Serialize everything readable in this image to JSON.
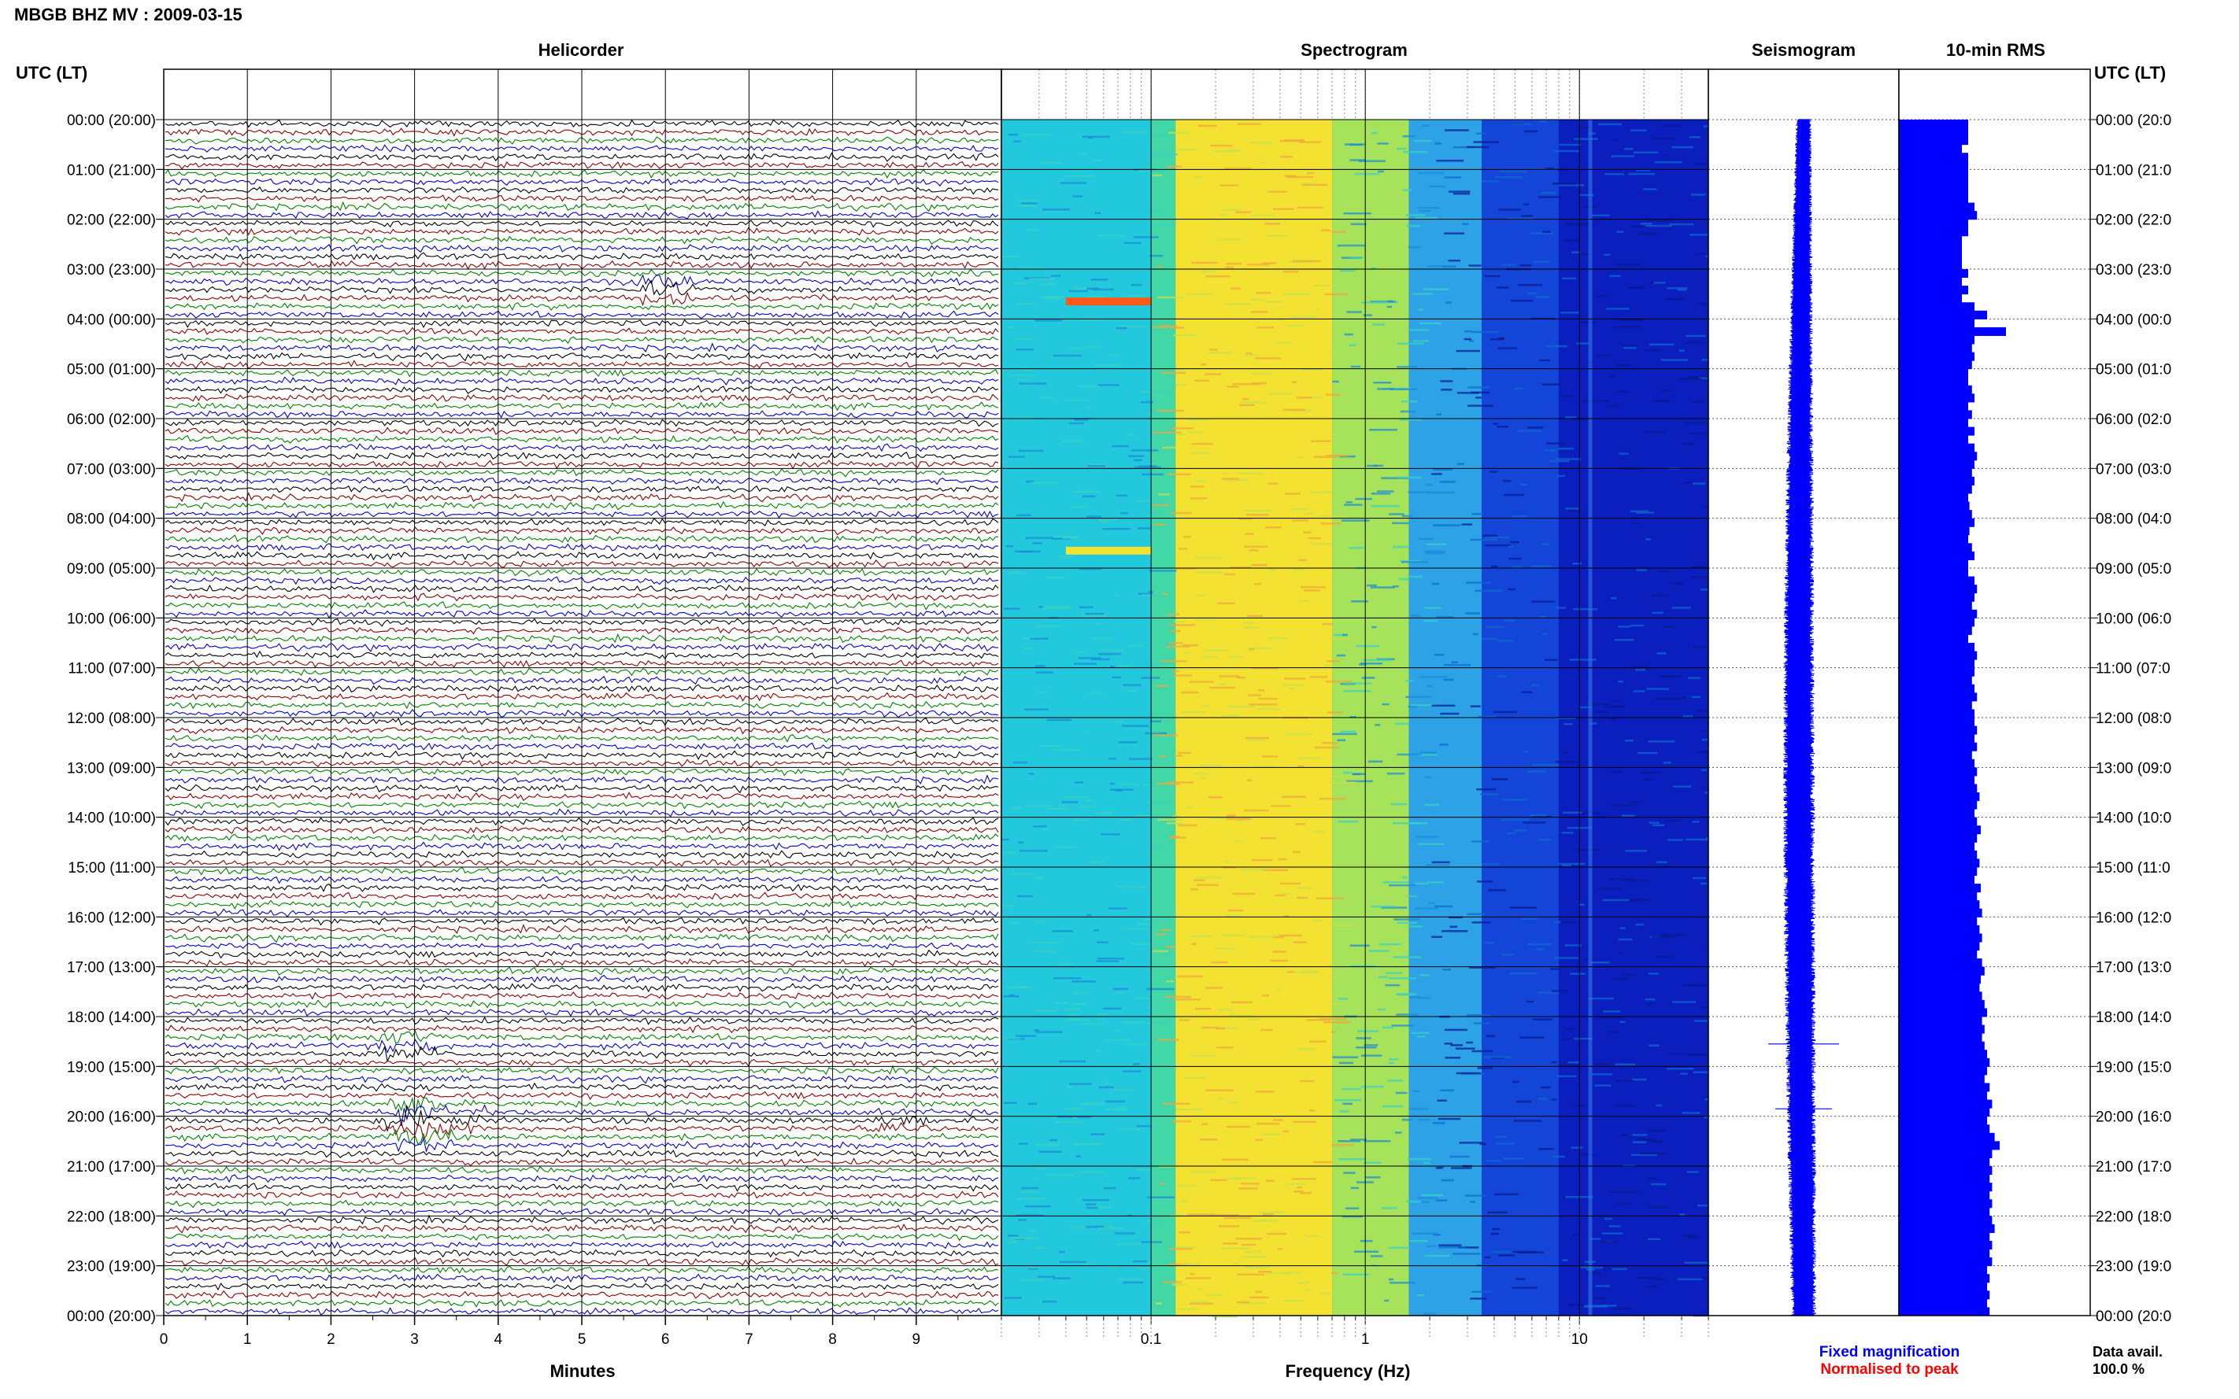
{
  "figure_title": "MBGB BHZ MV : 2009-03-15",
  "panels": {
    "helicorder": "Helicorder",
    "spectrogram": "Spectrogram",
    "seismogram": "Seismogram",
    "rms": "10-min RMS"
  },
  "left_axis_title": "UTC (LT)",
  "right_axis_title": "UTC (LT)",
  "time_labels_left": [
    "00:00 (20:00)",
    "01:00 (21:00)",
    "02:00 (22:00)",
    "03:00 (23:00)",
    "04:00 (00:00)",
    "05:00 (01:00)",
    "06:00 (02:00)",
    "07:00 (03:00)",
    "08:00 (04:00)",
    "09:00 (05:00)",
    "10:00 (06:00)",
    "11:00 (07:00)",
    "12:00 (08:00)",
    "13:00 (09:00)",
    "14:00 (10:00)",
    "15:00 (11:00)",
    "16:00 (12:00)",
    "17:00 (13:00)",
    "18:00 (14:00)",
    "19:00 (15:00)",
    "20:00 (16:00)",
    "21:00 (17:00)",
    "22:00 (18:00)",
    "23:00 (19:00)",
    "00:00 (20:00)"
  ],
  "time_labels_right": [
    "00:00 (20:0",
    "01:00 (21:0",
    "02:00 (22:0",
    "03:00 (23:0",
    "04:00 (00:0",
    "05:00 (01:0",
    "06:00 (02:0",
    "07:00 (03:0",
    "08:00 (04:0",
    "09:00 (05:0",
    "10:00 (06:0",
    "11:00 (07:0",
    "12:00 (08:0",
    "13:00 (09:0",
    "14:00 (10:0",
    "15:00 (11:0",
    "16:00 (12:0",
    "17:00 (13:0",
    "18:00 (14:0",
    "19:00 (15:0",
    "20:00 (16:0",
    "21:00 (17:0",
    "22:00 (18:0",
    "23:00 (19:0",
    "00:00 (20:0"
  ],
  "legend": {
    "fixed": "Fixed magnification",
    "normalised": "Normalised to peak",
    "fixed_color": "#0000ff",
    "normalised_color": "#ff0000"
  },
  "data_avail_label": "Data avail.",
  "data_avail_value": "100.0 %",
  "trace_colors": [
    "#000000",
    "#8b0000",
    "#008000",
    "#0000cd"
  ],
  "chart_data": [
    {
      "type": "line",
      "title": "Helicorder",
      "xlabel": "Minutes",
      "xlim": [
        0,
        10
      ],
      "x_ticks": [
        "0",
        "1",
        "2",
        "3",
        "4",
        "5",
        "6",
        "7",
        "8",
        "9"
      ],
      "rows": 144,
      "rows_per_hour": 6,
      "events": [
        {
          "time_hour": 3.4,
          "minute": 6.0,
          "color": "#8b0000",
          "amplitude": 2.5
        },
        {
          "time_hour": 18.5,
          "minute": 2.9,
          "color": "#008000",
          "amplitude": 2.5
        },
        {
          "time_hour": 19.85,
          "minute": 3.0,
          "color": "#008000",
          "amplitude": 4
        },
        {
          "time_hour": 20.0,
          "minute": 3.5,
          "color": "#000000",
          "amplitude": 2
        },
        {
          "time_hour": 20.4,
          "minute": 3.1,
          "color": "#008000",
          "amplitude": 3
        },
        {
          "time_hour": 20.1,
          "minute": 8.8,
          "color": "#8b0000",
          "amplitude": 1.5
        }
      ]
    },
    {
      "type": "heatmap",
      "title": "Spectrogram",
      "xlabel": "Frequency (Hz)",
      "x_scale": "log",
      "xlim": [
        0.02,
        40
      ],
      "x_ticks": [
        "0.1",
        "1",
        "10"
      ],
      "bands": [
        {
          "from_hz": 0.02,
          "to_hz": 0.1,
          "color": "#22c8dc"
        },
        {
          "from_hz": 0.1,
          "to_hz": 0.13,
          "color": "#41d7a6"
        },
        {
          "from_hz": 0.13,
          "to_hz": 0.7,
          "color": "#f4e233"
        },
        {
          "from_hz": 0.7,
          "to_hz": 1.6,
          "color": "#a6e25a"
        },
        {
          "from_hz": 1.6,
          "to_hz": 3.5,
          "color": "#2ea2e6"
        },
        {
          "from_hz": 3.5,
          "to_hz": 8,
          "color": "#1346d8"
        },
        {
          "from_hz": 8,
          "to_hz": 40,
          "color": "#0a1fbe"
        }
      ],
      "hotspots": [
        {
          "time_hour": 3.65,
          "from_hz": 0.04,
          "to_hz": 0.1,
          "color": "#ff5a1a"
        },
        {
          "time_hour": 8.65,
          "from_hz": 0.04,
          "to_hz": 0.1,
          "color": "#f4e233"
        }
      ]
    },
    {
      "type": "line",
      "title": "Seismogram",
      "description_values": [],
      "spikes": [
        {
          "time_hour": 18.55,
          "amplitude": 1.0
        },
        {
          "time_hour": 19.85,
          "amplitude": 0.8
        },
        {
          "time_hour": 20.15,
          "amplitude": 0.3
        }
      ]
    },
    {
      "type": "bar",
      "title": "10-min RMS",
      "orientation": "horizontal",
      "bar_color": "#0000ff",
      "values": [
        0.55,
        0.55,
        0.55,
        0.5,
        0.55,
        0.55,
        0.55,
        0.55,
        0.55,
        0.55,
        0.6,
        0.62,
        0.55,
        0.55,
        0.5,
        0.5,
        0.5,
        0.5,
        0.55,
        0.5,
        0.55,
        0.5,
        0.6,
        0.7,
        0.6,
        0.85,
        0.6,
        0.58,
        0.6,
        0.58,
        0.55,
        0.55,
        0.58,
        0.6,
        0.55,
        0.58,
        0.55,
        0.6,
        0.55,
        0.6,
        0.62,
        0.6,
        0.58,
        0.6,
        0.58,
        0.55,
        0.56,
        0.58,
        0.6,
        0.56,
        0.55,
        0.58,
        0.6,
        0.55,
        0.55,
        0.6,
        0.62,
        0.6,
        0.58,
        0.62,
        0.6,
        0.58,
        0.55,
        0.6,
        0.62,
        0.6,
        0.6,
        0.58,
        0.6,
        0.62,
        0.58,
        0.6,
        0.6,
        0.62,
        0.6,
        0.62,
        0.58,
        0.6,
        0.62,
        0.6,
        0.62,
        0.64,
        0.62,
        0.6,
        0.62,
        0.65,
        0.62,
        0.6,
        0.62,
        0.64,
        0.62,
        0.6,
        0.65,
        0.62,
        0.64,
        0.66,
        0.62,
        0.64,
        0.66,
        0.64,
        0.62,
        0.66,
        0.68,
        0.65,
        0.64,
        0.66,
        0.68,
        0.7,
        0.66,
        0.68,
        0.66,
        0.68,
        0.7,
        0.72,
        0.7,
        0.68,
        0.72,
        0.7,
        0.74,
        0.72,
        0.7,
        0.72,
        0.76,
        0.8,
        0.74,
        0.72,
        0.74,
        0.72,
        0.74,
        0.72,
        0.74,
        0.72,
        0.74,
        0.76,
        0.72,
        0.74,
        0.72,
        0.74,
        0.7,
        0.72,
        0.7,
        0.72,
        0.7,
        0.72
      ]
    }
  ]
}
